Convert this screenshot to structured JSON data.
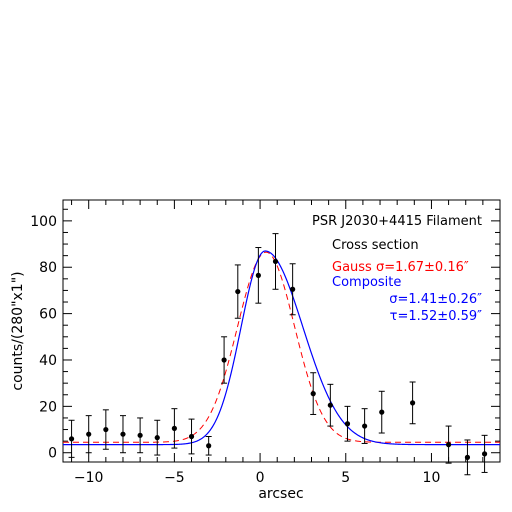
{
  "chart_data": {
    "type": "scatter",
    "title": "",
    "xlabel": "arcsec",
    "ylabel": "counts/(280\"x1\")",
    "xlim": [
      -11.5,
      14
    ],
    "ylim": [
      -4,
      109
    ],
    "x_ticks": [
      -10,
      -5,
      0,
      5,
      10
    ],
    "y_ticks": [
      0,
      20,
      40,
      60,
      80,
      100
    ],
    "grid": false,
    "annotations": {
      "source": "PSR J2030+4415 Filament",
      "subtitle": "Cross section",
      "gauss_label": "Gauss σ=1.67±0.16″",
      "composite_label": "Composite",
      "composite_sigma": "σ=1.41±0.26″",
      "composite_tau": "τ=1.52±0.59″"
    },
    "series": [
      {
        "kind": "data_points_with_errorbars",
        "color": "#000000",
        "points": [
          {
            "x": -11.0,
            "y": 6.0,
            "err": 8.0
          },
          {
            "x": -10.0,
            "y": 8.0,
            "err": 8.0
          },
          {
            "x": -9.0,
            "y": 10.0,
            "err": 8.5
          },
          {
            "x": -8.0,
            "y": 8.0,
            "err": 8.0
          },
          {
            "x": -7.0,
            "y": 7.5,
            "err": 7.5
          },
          {
            "x": -6.0,
            "y": 6.5,
            "err": 7.5
          },
          {
            "x": -5.0,
            "y": 10.5,
            "err": 8.5
          },
          {
            "x": -4.0,
            "y": 7.0,
            "err": 7.5
          },
          {
            "x": -3.0,
            "y": 3.0,
            "err": 4.0
          },
          {
            "x": -2.1,
            "y": 40.0,
            "err": 10.0
          },
          {
            "x": -1.3,
            "y": 69.5,
            "err": 11.5
          },
          {
            "x": -0.1,
            "y": 76.5,
            "err": 12.0
          },
          {
            "x": 0.9,
            "y": 82.5,
            "err": 12.0
          },
          {
            "x": 1.9,
            "y": 70.5,
            "err": 11.0
          },
          {
            "x": 3.1,
            "y": 25.5,
            "err": 9.0
          },
          {
            "x": 4.1,
            "y": 20.5,
            "err": 9.0
          },
          {
            "x": 5.1,
            "y": 12.5,
            "err": 7.5
          },
          {
            "x": 6.1,
            "y": 11.5,
            "err": 7.5
          },
          {
            "x": 7.1,
            "y": 17.5,
            "err": 9.0
          },
          {
            "x": 8.9,
            "y": 21.5,
            "err": 9.0
          },
          {
            "x": 11.0,
            "y": 3.5,
            "err": 8.0
          },
          {
            "x": 12.1,
            "y": -2.0,
            "err": 7.5
          },
          {
            "x": 13.1,
            "y": -0.5,
            "err": 8.0
          }
        ]
      },
      {
        "kind": "gauss_fit",
        "color": "#ff0000",
        "dash": true,
        "params": {
          "amp": 82,
          "mu": 0.35,
          "sigma": 1.67,
          "base": 4.5
        }
      },
      {
        "kind": "composite_fit",
        "color": "#0000ff",
        "dash": false,
        "params": {
          "amp": 83.5,
          "mu": 0.3,
          "sigma_left": 1.41,
          "sigma_right": 2.2,
          "tau": 1.52,
          "base": 3.5
        }
      }
    ]
  }
}
